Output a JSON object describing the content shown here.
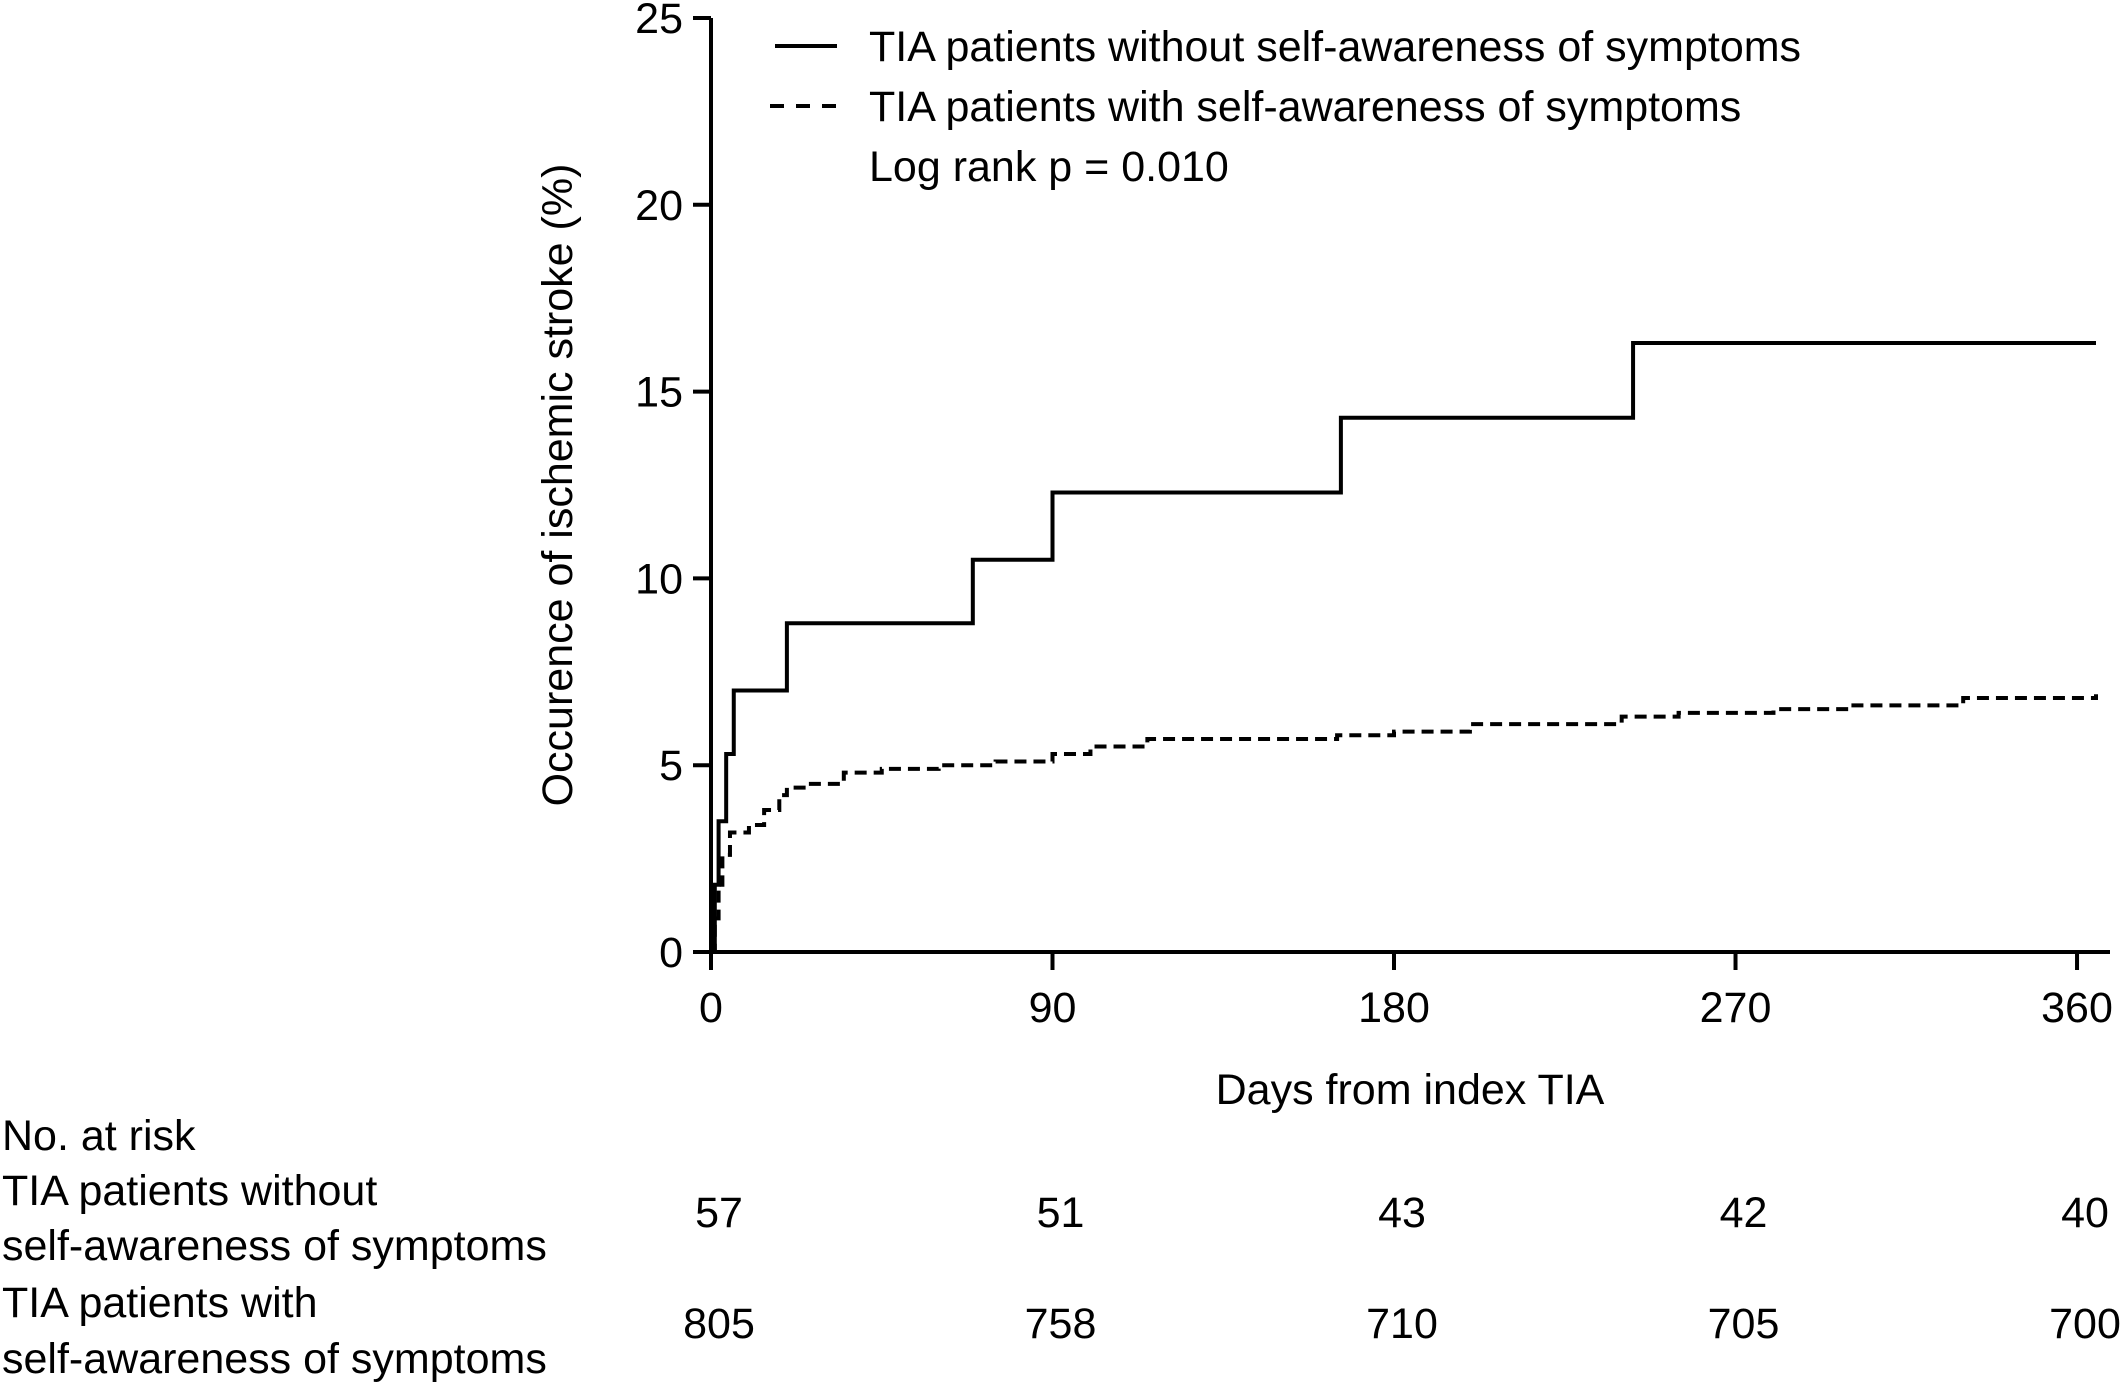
{
  "chart_data": {
    "type": "line",
    "step": true,
    "xlabel": "Days from index TIA",
    "ylabel": "Occurence of ischemic stroke (%)",
    "xlim": [
      0,
      365
    ],
    "ylim": [
      0,
      25
    ],
    "xticks": [
      0,
      90,
      180,
      270,
      360
    ],
    "yticks": [
      0,
      5,
      10,
      15,
      20,
      25
    ],
    "grid": false,
    "legend_position": "top-left",
    "annotation": "Log rank p = 0.010",
    "series": [
      {
        "name": "TIA patients without self-awareness of symptoms",
        "line_style": "solid",
        "x": [
          0,
          1,
          2,
          3,
          4,
          6,
          20,
          69,
          90,
          166,
          243,
          365
        ],
        "y": [
          0,
          1.8,
          3.5,
          3.5,
          5.3,
          7.0,
          8.8,
          10.5,
          12.3,
          14.3,
          16.3,
          16.3
        ]
      },
      {
        "name": "TIA patients with self-awareness of symptoms",
        "line_style": "dashed",
        "x": [
          0,
          1,
          2,
          3,
          5,
          10,
          14,
          18,
          20,
          25,
          35,
          45,
          60,
          75,
          90,
          100,
          115,
          130,
          165,
          180,
          200,
          235,
          240,
          255,
          280,
          300,
          330,
          365
        ],
        "y": [
          0,
          0.9,
          1.8,
          2.6,
          3.2,
          3.4,
          3.8,
          4.2,
          4.4,
          4.5,
          4.8,
          4.9,
          5.0,
          5.1,
          5.3,
          5.5,
          5.7,
          5.7,
          5.8,
          5.9,
          6.1,
          6.1,
          6.3,
          6.4,
          6.5,
          6.6,
          6.8,
          6.9
        ]
      }
    ],
    "risk_table": {
      "title": "No. at risk",
      "rows": [
        {
          "label_line1": "TIA patients without",
          "label_line2": "self-awareness of symptoms",
          "values": [
            "57",
            "51",
            "43",
            "42",
            "40"
          ]
        },
        {
          "label_line1": "TIA patients with",
          "label_line2": "self-awareness of symptoms",
          "values": [
            "805",
            "758",
            "710",
            "705",
            "700"
          ]
        }
      ]
    }
  }
}
